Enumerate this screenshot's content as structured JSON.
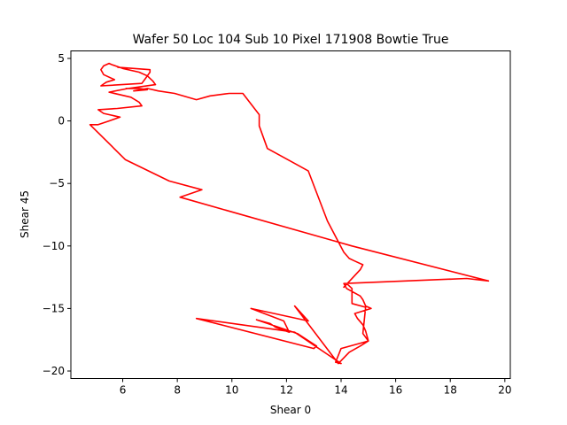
{
  "chart_data": {
    "type": "line",
    "title": "Wafer 50 Loc 104 Sub 10 Pixel 171908 Bowtie True",
    "xlabel": "Shear 0",
    "ylabel": "Shear 45",
    "xlim": [
      4.1,
      20.2
    ],
    "ylim": [
      -20.6,
      5.6
    ],
    "xticks": [
      6,
      8,
      10,
      12,
      14,
      16,
      18,
      20
    ],
    "yticks": [
      5,
      0,
      -5,
      -10,
      -15,
      -20
    ],
    "grid": false,
    "legend": "none",
    "series": [
      {
        "color": "#ff0000",
        "x": [
          5.8,
          7.0,
          7.0,
          6.9,
          6.8,
          6.7,
          5.2,
          5.4,
          5.7,
          5.3,
          5.2,
          5.3,
          5.5,
          5.6,
          6.0,
          6.6,
          6.9,
          7.1,
          7.2,
          6.2,
          5.5,
          6.3,
          6.6,
          6.7,
          5.8,
          5.1,
          5.3,
          5.9,
          5.5,
          5.1,
          4.8,
          6.1,
          7.7,
          8.9,
          8.1,
          14.4,
          19.4,
          18.6,
          14.1,
          14.2,
          14.7,
          14.8,
          14.9,
          15.1,
          14.5,
          14.6,
          14.8,
          14.9,
          15.0,
          14.7,
          14.3,
          13.9,
          12.3,
          12.8,
          10.7,
          11.9,
          12.1,
          11.6,
          11.4,
          10.9,
          12.4,
          13.1,
          13.0,
          8.7,
          12.3,
          14.0,
          13.8,
          14.0,
          15.0,
          14.8,
          14.9,
          14.4,
          14.4,
          14.2,
          14.1,
          14.7,
          14.8,
          14.5,
          14.3,
          14.1,
          13.5,
          12.8,
          12.3,
          11.3,
          11.0,
          11.0,
          10.4,
          9.9,
          9.2,
          8.7,
          7.9,
          7.3,
          6.9,
          6.4,
          6.9,
          6.6,
          6.1
        ],
        "y": [
          4.3,
          4.1,
          3.9,
          3.6,
          3.3,
          3.0,
          2.8,
          3.1,
          3.3,
          3.7,
          4.1,
          4.4,
          4.6,
          4.5,
          4.2,
          3.9,
          3.6,
          3.2,
          2.9,
          2.6,
          2.3,
          1.9,
          1.5,
          1.2,
          1.0,
          0.9,
          0.6,
          0.3,
          0.0,
          -0.3,
          -0.3,
          -3.1,
          -4.8,
          -5.5,
          -6.1,
          -10.0,
          -12.8,
          -12.6,
          -13.0,
          -13.4,
          -14.0,
          -14.3,
          -14.8,
          -15.0,
          -15.4,
          -15.8,
          -16.3,
          -16.8,
          -17.6,
          -18.0,
          -18.5,
          -19.4,
          -14.8,
          -16.0,
          -15.0,
          -16.0,
          -16.9,
          -16.5,
          -16.2,
          -15.9,
          -17.0,
          -18.0,
          -18.2,
          -15.8,
          -16.9,
          -19.4,
          -19.3,
          -18.2,
          -17.6,
          -17.0,
          -14.9,
          -14.6,
          -13.4,
          -13.0,
          -13.3,
          -11.9,
          -11.5,
          -11.2,
          -11.0,
          -10.5,
          -8.0,
          -4.0,
          -3.4,
          -2.2,
          -0.4,
          0.5,
          2.2,
          2.2,
          2.0,
          1.7,
          2.2,
          2.4,
          2.6,
          2.4,
          2.5,
          2.6,
          2.6
        ]
      }
    ]
  }
}
